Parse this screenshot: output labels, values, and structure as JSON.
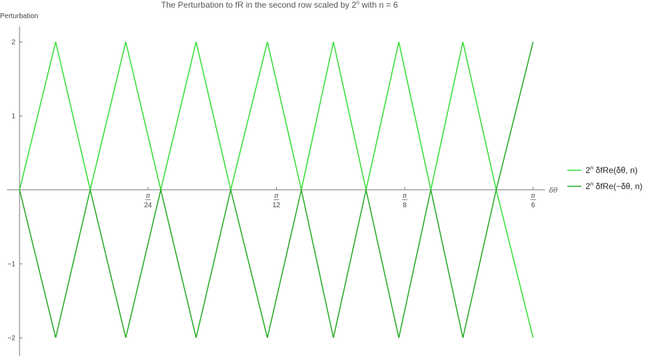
{
  "chart_data": {
    "type": "line",
    "title_main": "The Perturbation to fR in the second row scaled by 2",
    "title_sup": "n",
    "title_tail": " with n = 6",
    "ylabel": "Perturbation",
    "xlabel": "δθ",
    "xlim": [
      0,
      0.5236
    ],
    "ylim": [
      -2,
      2
    ],
    "y_ticks": [
      {
        "value": 2,
        "label": "2"
      },
      {
        "value": 1,
        "label": "1"
      },
      {
        "value": -1,
        "label": "−1"
      },
      {
        "value": -2,
        "label": "−2"
      }
    ],
    "x_ticks": [
      {
        "value": 0.1309,
        "num": "π",
        "den": "24"
      },
      {
        "value": 0.2618,
        "num": "π",
        "den": "12"
      },
      {
        "value": 0.3927,
        "num": "π",
        "den": "8"
      },
      {
        "value": 0.5236,
        "num": "π",
        "den": "6"
      }
    ],
    "grid": false,
    "legend_position": "right",
    "series": [
      {
        "name_base": "2",
        "name_sup": "n",
        "name_rest": " δfRe(δθ, n)",
        "color": "#33dd33",
        "x": [
          0,
          0.0368,
          0.072,
          0.1083,
          0.144,
          0.18,
          0.2153,
          0.2527,
          0.2873,
          0.32,
          0.3533,
          0.3867,
          0.4193,
          0.452,
          0.486,
          0.5236
        ],
        "y": [
          0,
          2,
          0,
          2,
          0,
          2,
          0,
          2,
          0,
          2,
          0,
          2,
          0,
          2,
          0,
          -2
        ]
      },
      {
        "name_base": "2",
        "name_sup": "n",
        "name_rest": " δfRe(−δθ, n)",
        "color": "#22aa22",
        "x": [
          0,
          0.0368,
          0.072,
          0.1083,
          0.144,
          0.18,
          0.2153,
          0.2527,
          0.2873,
          0.32,
          0.3533,
          0.3867,
          0.4193,
          0.452,
          0.486,
          0.5236
        ],
        "y": [
          0,
          -2,
          0,
          -2,
          0,
          -2,
          0,
          -2,
          0,
          -2,
          0,
          -2,
          0,
          -2,
          0,
          2
        ]
      }
    ]
  }
}
